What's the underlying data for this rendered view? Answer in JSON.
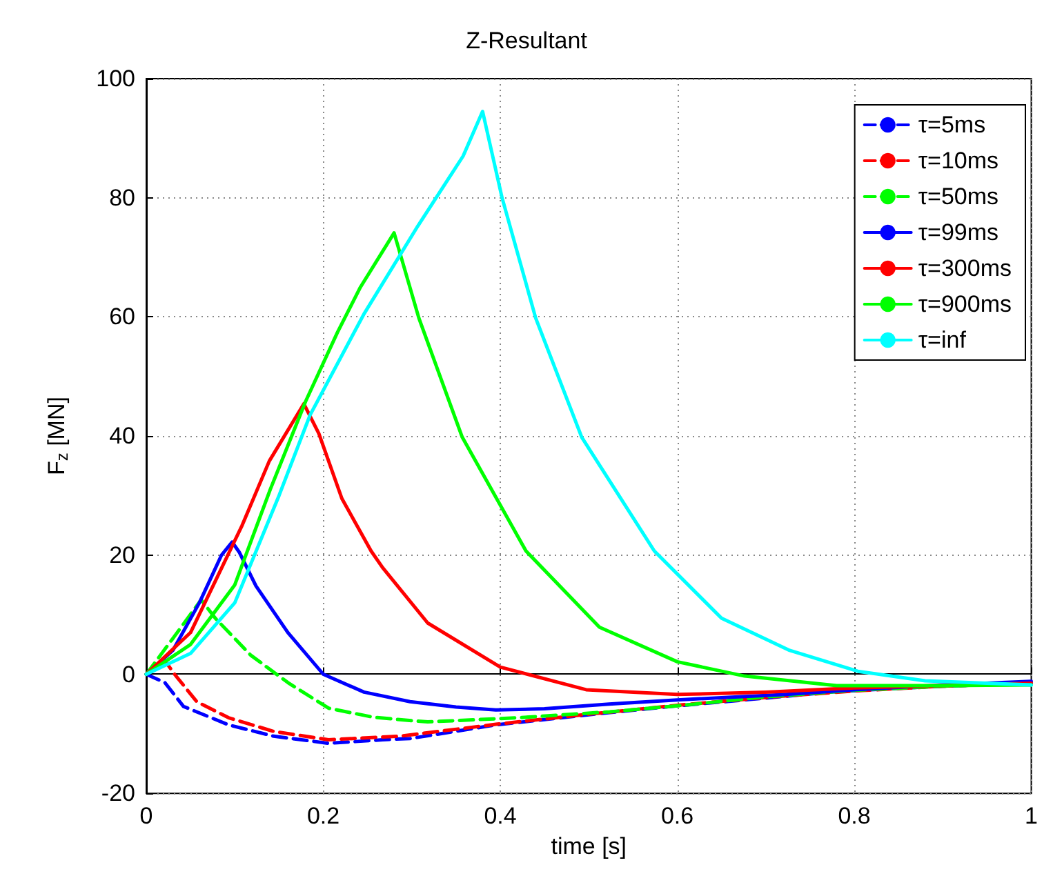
{
  "chart_data": {
    "type": "line",
    "title": "Z-Resultant",
    "xlabel": "time [s]",
    "ylabel": "F$_{z}$ [MN]",
    "xlim": [
      0,
      1
    ],
    "xticks": [
      0,
      0.2,
      0.4,
      0.6,
      0.8,
      1
    ],
    "ylim": [
      -20,
      100
    ],
    "yticks": [
      -20,
      0,
      20,
      40,
      60,
      80,
      100
    ],
    "grid": true,
    "legend": "top right",
    "marker": "none",
    "series": [
      {
        "name": "τ=5ms",
        "color": "#0000ff",
        "line_style": "dashed",
        "x": [
          0,
          0.021,
          0.042,
          0.093,
          0.144,
          0.206,
          0.267,
          0.298,
          0.395,
          0.5,
          0.6,
          0.7,
          0.78,
          0.9,
          1
        ],
        "values": [
          0,
          -1.4,
          -5.4,
          -8.5,
          -10.4,
          -11.6,
          -11,
          -10.8,
          -8.5,
          -6.8,
          -5.3,
          -4,
          -2.9,
          -2,
          -1.5
        ]
      },
      {
        "name": "τ=10ms",
        "color": "#ff0000",
        "line_style": "dashed",
        "x": [
          0,
          0.02,
          0.032,
          0.057,
          0.093,
          0.144,
          0.206,
          0.287,
          0.395,
          0.5,
          0.6,
          0.7,
          0.8,
          0.9,
          1
        ],
        "values": [
          0,
          2.5,
          0,
          -4.6,
          -7.3,
          -9.6,
          -11,
          -10.4,
          -8.4,
          -6.7,
          -5.2,
          -3.9,
          -2.8,
          -2,
          -1.5
        ]
      },
      {
        "name": "τ=50ms",
        "color": "#00ff00",
        "line_style": "dashed",
        "x": [
          0,
          0.03,
          0.062,
          0.078,
          0.118,
          0.16,
          0.206,
          0.256,
          0.3,
          0.318,
          0.42,
          0.524,
          0.6,
          0.7,
          0.8,
          0.9,
          1
        ],
        "values": [
          0,
          6,
          12.5,
          9.4,
          3.2,
          -1.4,
          -5.7,
          -7.2,
          -7.8,
          -8,
          -7.3,
          -6.3,
          -5.3,
          -3.8,
          -2.7,
          -2,
          -1.5
        ]
      },
      {
        "name": "τ=99ms",
        "color": "#0000ff",
        "line_style": "solid",
        "x": [
          0,
          0.03,
          0.06,
          0.085,
          0.097,
          0.105,
          0.124,
          0.16,
          0.2,
          0.246,
          0.298,
          0.35,
          0.395,
          0.45,
          0.523,
          0.6,
          0.723,
          0.8,
          0.9,
          1
        ],
        "values": [
          0,
          4,
          12,
          20,
          22.2,
          20.5,
          14.8,
          7,
          0,
          -3,
          -4.6,
          -5.5,
          -6,
          -5.8,
          -5,
          -4.3,
          -3.4,
          -2.6,
          -1.8,
          -1.2
        ]
      },
      {
        "name": "τ=300ms",
        "color": "#ff0000",
        "line_style": "solid",
        "x": [
          0,
          0.05,
          0.108,
          0.139,
          0.178,
          0.195,
          0.221,
          0.254,
          0.267,
          0.318,
          0.4,
          0.497,
          0.6,
          0.7,
          0.8,
          0.9,
          1
        ],
        "values": [
          0,
          7,
          24.9,
          35.8,
          45.4,
          40.4,
          29.5,
          20.7,
          17.9,
          8.6,
          1.2,
          -2.6,
          -3.4,
          -3,
          -2.3,
          -1.9,
          -1.5
        ]
      },
      {
        "name": "τ=900ms",
        "color": "#00ff00",
        "line_style": "solid",
        "x": [
          0,
          0.05,
          0.1,
          0.14,
          0.18,
          0.216,
          0.242,
          0.28,
          0.308,
          0.357,
          0.429,
          0.512,
          0.6,
          0.676,
          0.78,
          0.9,
          1
        ],
        "values": [
          0,
          5,
          15,
          31,
          45.8,
          57.4,
          65,
          74.1,
          59.8,
          39.8,
          20.7,
          7.9,
          2.1,
          -0.3,
          -1.9,
          -1.9,
          -1.8
        ]
      },
      {
        "name": "τ=inf",
        "color": "#00ffff",
        "line_style": "solid",
        "x": [
          0,
          0.05,
          0.1,
          0.15,
          0.185,
          0.246,
          0.307,
          0.358,
          0.38,
          0.402,
          0.44,
          0.492,
          0.574,
          0.65,
          0.727,
          0.804,
          0.88,
          1
        ],
        "values": [
          0,
          3.5,
          12,
          30,
          43.5,
          60.5,
          75.3,
          87,
          94.5,
          80,
          59.8,
          39.8,
          20.7,
          9.4,
          4,
          0.5,
          -1.1,
          -1.8
        ]
      }
    ]
  }
}
